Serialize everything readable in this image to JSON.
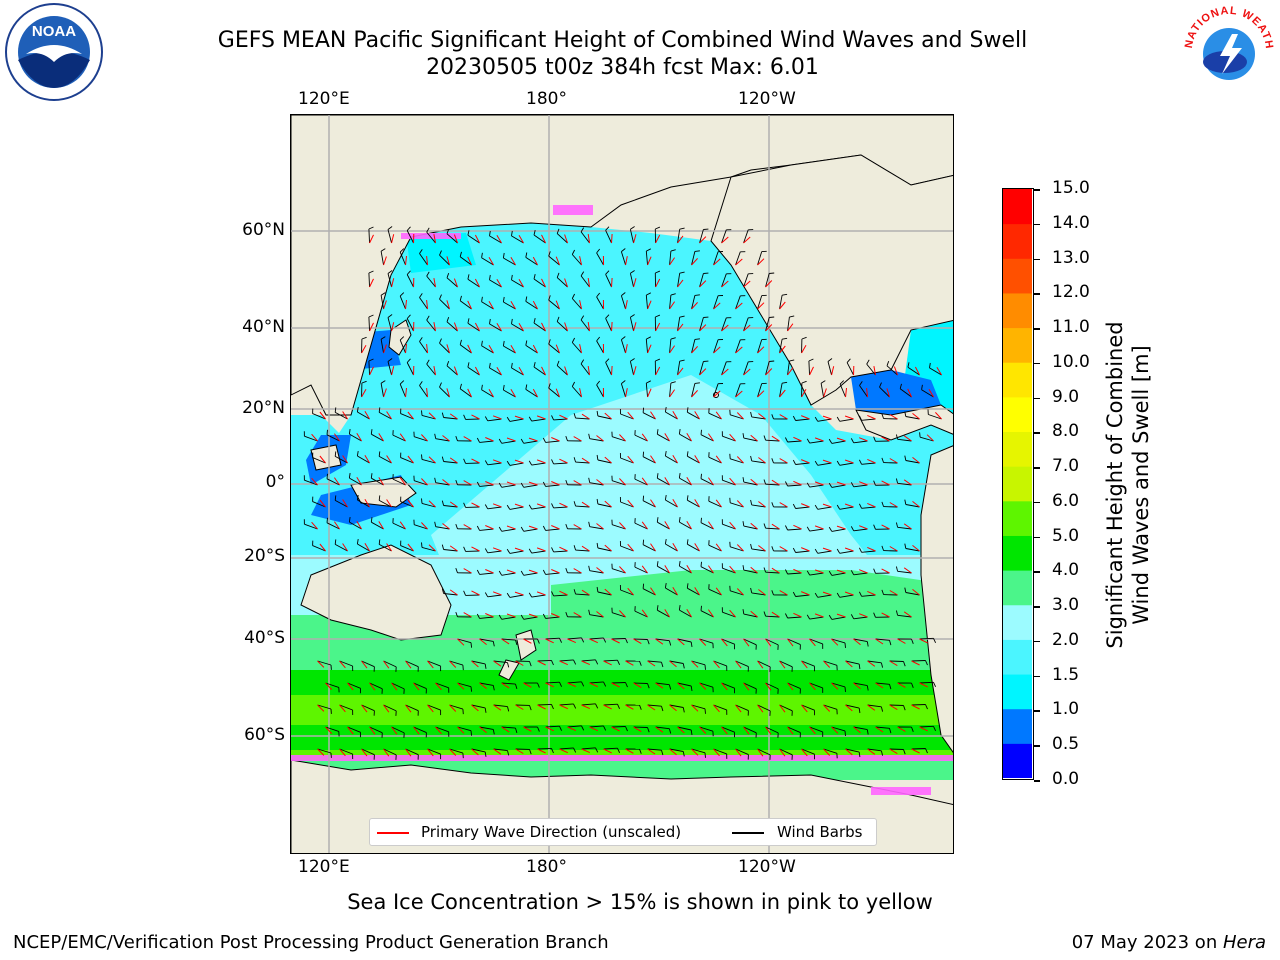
{
  "title_line1": "GEFS MEAN Pacific Significant Height of Combined Wind Waves and Swell",
  "title_line2": "20230505 t00z 384h fcst   Max: 6.01",
  "lon_labels": [
    "120°E",
    "180°",
    "120°W"
  ],
  "lat_labels": [
    "60°N",
    "40°N",
    "20°N",
    "0°",
    "20°S",
    "40°S",
    "60°S"
  ],
  "colorbar": {
    "label_line1": "Significant Height of Combined",
    "label_line2": "Wind Waves and Swell [m]",
    "ticks": [
      "0.0",
      "0.5",
      "1.0",
      "1.5",
      "2.0",
      "3.0",
      "4.0",
      "5.0",
      "6.0",
      "7.0",
      "8.0",
      "9.0",
      "10.0",
      "11.0",
      "12.0",
      "13.0",
      "14.0",
      "15.0"
    ],
    "colors": [
      "#0000ff",
      "#0078ff",
      "#00f5ff",
      "#4bf5ff",
      "#9cfbff",
      "#4bf58a",
      "#00e600",
      "#5ef500",
      "#c8f500",
      "#e6f500",
      "#ffff00",
      "#ffe600",
      "#ffb400",
      "#ff8c00",
      "#ff5000",
      "#ff2800",
      "#ff0000"
    ]
  },
  "legend": {
    "wave_label": "Primary Wave Direction (unscaled)",
    "wave_color": "#ff0000",
    "barb_label": "Wind Barbs",
    "barb_color": "#000000"
  },
  "sea_ice_note": "Sea Ice Concentration > 15% is shown in pink to yellow",
  "footer_left": "NCEP/EMC/Verification Post Processing Product Generation Branch",
  "footer_right_date": "07 May 2023 on ",
  "footer_right_host": "Hera",
  "logos": {
    "noaa": "NOAA",
    "nws": "NATIONAL WEATHER SERVICE"
  },
  "colors": {
    "land": "#eeecdc",
    "grid": "#b0b0b0"
  }
}
